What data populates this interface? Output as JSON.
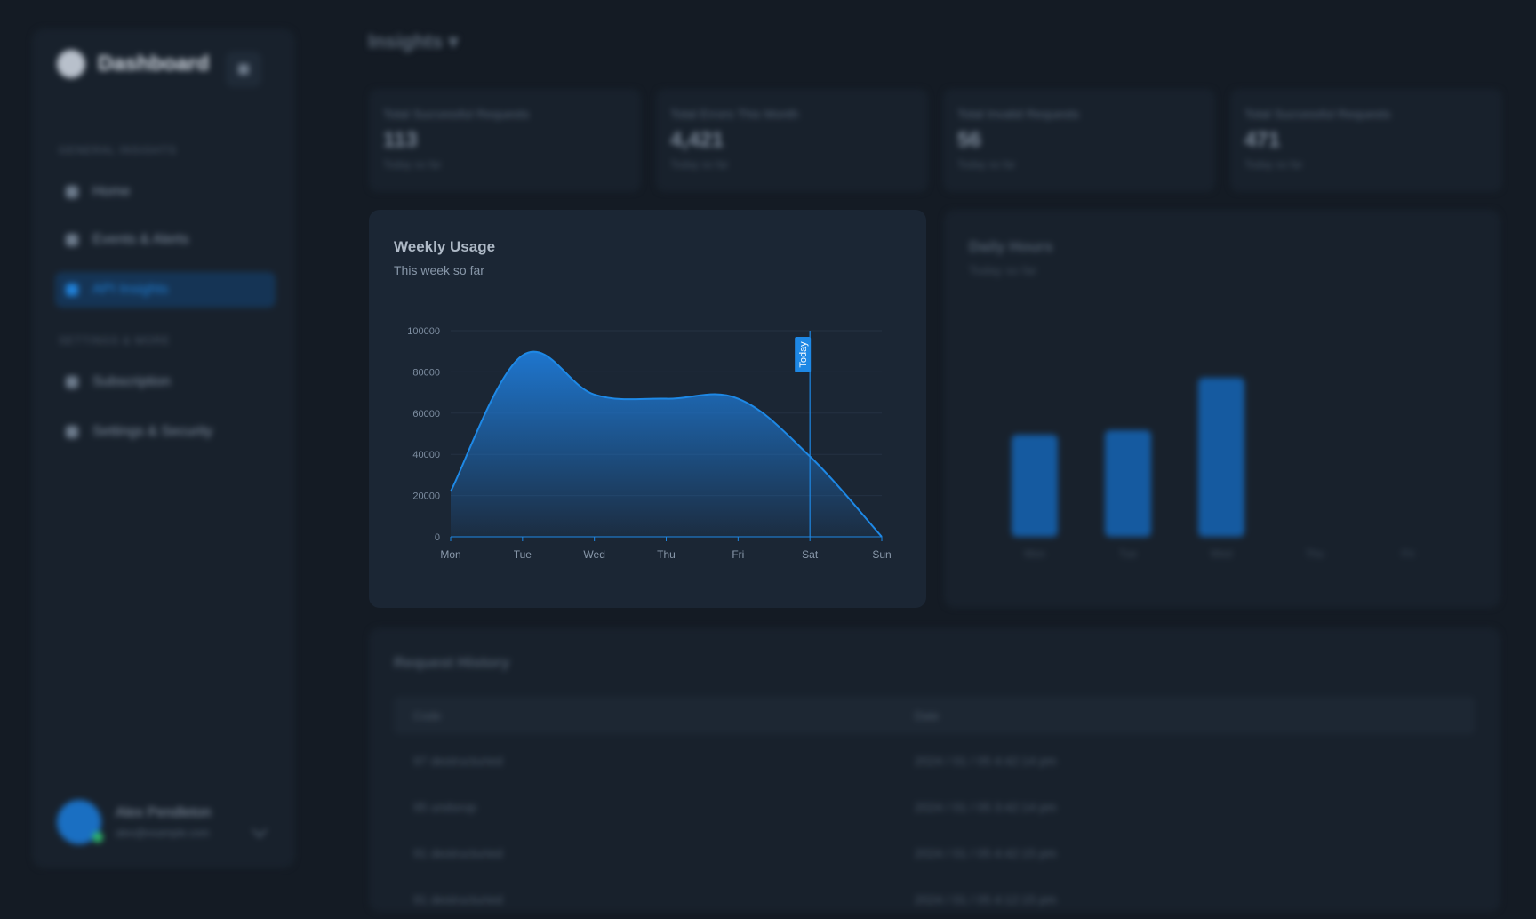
{
  "sidebar": {
    "brand": "Dashboard",
    "sections": [
      {
        "label": "General Insights",
        "items": [
          {
            "label": "Home",
            "icon": "home-icon"
          },
          {
            "label": "Events & Alerts",
            "icon": "bell-icon"
          },
          {
            "label": "API Insights",
            "icon": "chart-icon",
            "active": true
          }
        ]
      },
      {
        "label": "Settings & More",
        "items": [
          {
            "label": "Subscription",
            "icon": "card-icon"
          },
          {
            "label": "Settings & Security",
            "icon": "gear-icon"
          }
        ]
      }
    ],
    "user": {
      "name": "Alex Pendleton",
      "subtitle": "alex@example.com"
    }
  },
  "page": {
    "title": "Insights"
  },
  "stats": [
    {
      "label": "Total Successful Requests",
      "value": "113",
      "sub": "Today so far"
    },
    {
      "label": "Total Errors This Month",
      "value": "4,421",
      "sub": "Today so far"
    },
    {
      "label": "Total Invalid Requests",
      "value": "56",
      "sub": "Today so far"
    },
    {
      "label": "Total Successful Requests",
      "value": "471",
      "sub": "Today so far"
    }
  ],
  "weekly": {
    "title": "Weekly Usage",
    "subtitle": "This week so far",
    "marker_label": "Today"
  },
  "chart_data": {
    "type": "area",
    "x": [
      "Mon",
      "Tue",
      "Wed",
      "Thu",
      "Fri",
      "Sat",
      "Sun"
    ],
    "values": [
      22000,
      88000,
      69000,
      67000,
      67000,
      39000,
      0
    ],
    "ylim": [
      0,
      100000
    ],
    "yticks": [
      0,
      20000,
      40000,
      60000,
      80000,
      100000
    ],
    "marker_x": "Sat",
    "grid": true,
    "colors": {
      "line": "#1e88e5",
      "fill_top": "#1e7ad6",
      "marker": "#1e88e5"
    }
  },
  "right_panel": {
    "title": "Daily Hours",
    "subtitle": "Today so far",
    "bars": [
      {
        "label": "Mon",
        "value": 0.5
      },
      {
        "label": "Tue",
        "value": 0.52
      },
      {
        "label": "Wed",
        "value": 0.78
      },
      {
        "label": "Thu",
        "value": 0
      },
      {
        "label": "Fri",
        "value": 0
      }
    ]
  },
  "history": {
    "title": "Request History",
    "columns": [
      "Code",
      "Date"
    ],
    "rows": [
      {
        "code": "97 destructuried",
        "date": "2024 / 01 / 05 4:42:14 pm"
      },
      {
        "code": "95 undorop",
        "date": "2024 / 01 / 05 3:42:14 pm"
      },
      {
        "code": "91 destructuried",
        "date": "2024 / 01 / 05 4:42:15 pm"
      },
      {
        "code": "91 destructuried",
        "date": "2024 / 01 / 05 4:12:15 pm"
      }
    ]
  }
}
